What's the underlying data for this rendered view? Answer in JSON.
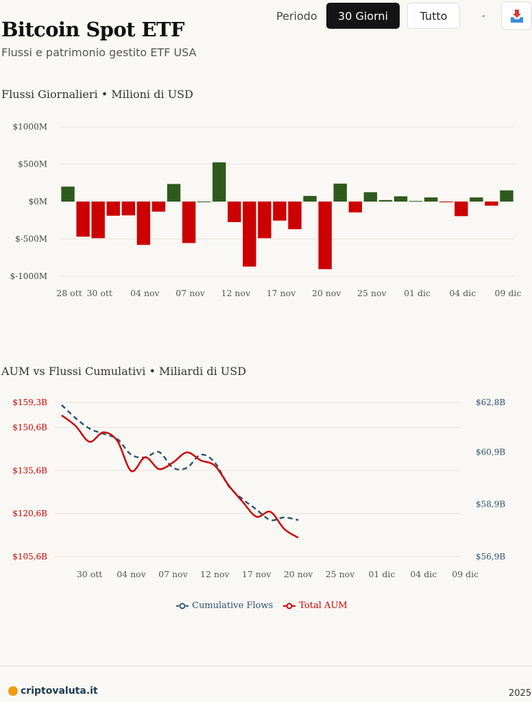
{
  "header": {
    "title": "Bitcoin Spot ETF",
    "subtitle": "Flussi e patrimonio gestito ETF USA",
    "period_label": "Periodo",
    "period_options": [
      "30 Giorni",
      "Tutto"
    ],
    "selected_period": "30 Giorni"
  },
  "colors": {
    "inflow": "#2f5a1d",
    "outflow": "#cc0000",
    "aum_line": "#cc0000",
    "cumulative_line": "#2c5273",
    "accent_button": "#141414"
  },
  "icons": {
    "download": "download-tray-icon",
    "brand": "brand-logo-icon"
  },
  "footer": {
    "brand": "criptovaluta.it",
    "year": "2025"
  },
  "legend": [
    "Cumulative Flows",
    "Total AUM"
  ],
  "chart_data": [
    {
      "type": "bar",
      "title": "Flussi Giornalieri • Milioni di USD",
      "ytick_labels": [
        "$1000M",
        "$500M",
        "$0M",
        "$-500M",
        "$-1000M"
      ],
      "yticks": [
        1000,
        500,
        0,
        -500,
        -1000
      ],
      "ylim": [
        -1000,
        1000
      ],
      "xtick_labels": [
        "28 ott",
        "30 ott",
        "04 nov",
        "07 nov",
        "12 nov",
        "17 nov",
        "20 nov",
        "25 nov",
        "01 dic",
        "04 dic",
        "09 dic"
      ],
      "categories": [
        "28 ott",
        "29 ott",
        "30 ott",
        "31 ott",
        "03 nov",
        "04 nov",
        "05 nov",
        "06 nov",
        "07 nov",
        "10 nov",
        "11 nov",
        "12 nov",
        "13 nov",
        "14 nov",
        "17 nov",
        "18 nov",
        "19 nov",
        "20 nov",
        "21 nov",
        "24 nov",
        "25 nov",
        "26 nov",
        "28 nov",
        "01 dic",
        "02 dic",
        "03 dic",
        "04 dic",
        "05 dic",
        "08 dic",
        "09 dic"
      ],
      "values": [
        200,
        -470,
        -490,
        -190,
        -185,
        -580,
        -135,
        235,
        -555,
        0,
        525,
        -275,
        -870,
        -490,
        -255,
        -370,
        75,
        -905,
        240,
        -145,
        125,
        20,
        70,
        8,
        55,
        -10,
        -195,
        55,
        -55,
        150
      ],
      "grid": true
    },
    {
      "type": "line",
      "title": "AUM vs Flussi Cumulativi • Miliardi di USD",
      "left_ytick_labels": [
        "$159,3B",
        "$150,6B",
        "$135,6B",
        "$120,6B",
        "$105,6B"
      ],
      "right_ytick_labels": [
        "$62,8B",
        "$60,9B",
        "$58,9B",
        "$56,9B"
      ],
      "left_ylim": [
        105.6,
        159.3
      ],
      "right_ylim": [
        56.9,
        62.8
      ],
      "xtick_labels": [
        "30 ott",
        "04 nov",
        "07 nov",
        "12 nov",
        "17 nov",
        "20 nov",
        "25 nov",
        "01 dic",
        "04 dic",
        "09 dic"
      ],
      "series": [
        {
          "name": "Total AUM",
          "axis": "left",
          "x": [
            "28 ott",
            "29 ott",
            "30 ott",
            "31 ott",
            "03 nov",
            "04 nov",
            "05 nov",
            "06 nov",
            "07 nov",
            "10 nov",
            "11 nov",
            "12 nov",
            "13 nov",
            "14 nov",
            "17 nov",
            "18 nov",
            "19 nov",
            "20 nov"
          ],
          "values": [
            154.8,
            151.1,
            145.6,
            148.9,
            145.9,
            135.4,
            140.2,
            136.1,
            138.4,
            141.9,
            139.1,
            137.3,
            130.4,
            124.7,
            119.5,
            121.2,
            115.2,
            112.2
          ]
        },
        {
          "name": "Cumulative Flows",
          "axis": "right",
          "x": [
            "28 ott",
            "29 ott",
            "30 ott",
            "31 ott",
            "03 nov",
            "04 nov",
            "05 nov",
            "06 nov",
            "07 nov",
            "10 nov",
            "11 nov",
            "12 nov",
            "13 nov",
            "14 nov",
            "17 nov",
            "18 nov",
            "19 nov",
            "20 nov"
          ],
          "values": [
            62.7,
            62.2,
            61.8,
            61.6,
            61.4,
            60.8,
            60.7,
            60.9,
            60.3,
            60.3,
            60.8,
            60.5,
            59.6,
            59.1,
            58.7,
            58.3,
            58.4,
            58.3
          ]
        }
      ],
      "grid": true,
      "legend_position": "bottom"
    }
  ]
}
